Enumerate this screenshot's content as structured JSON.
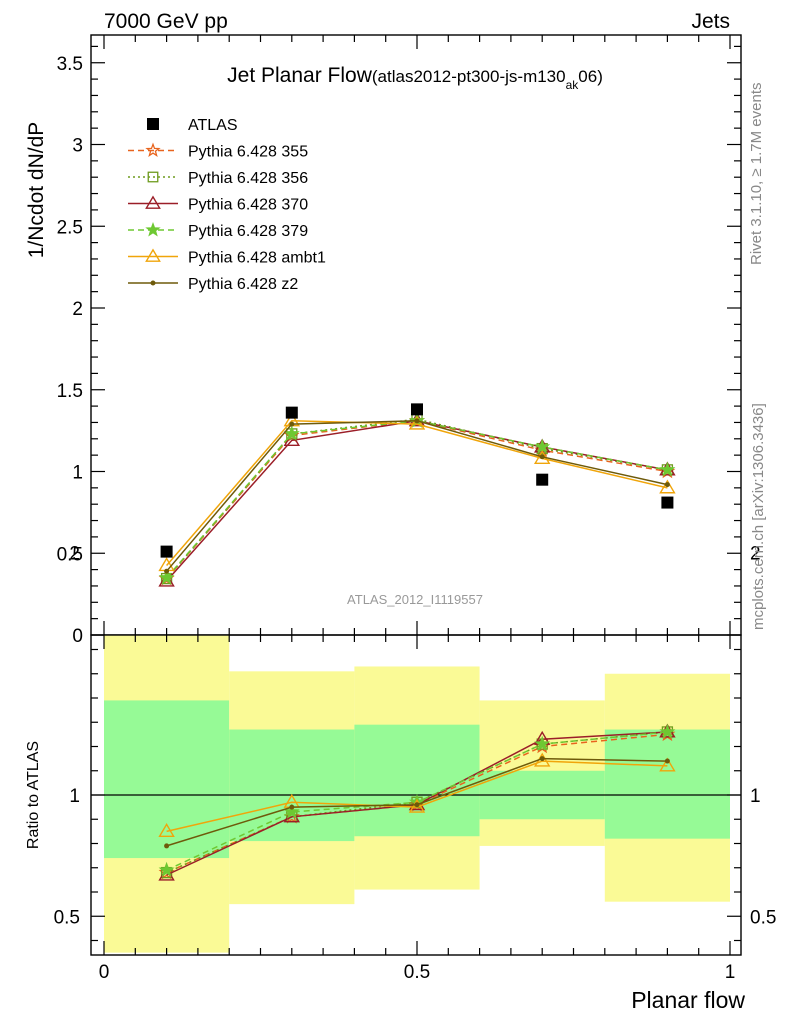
{
  "header": {
    "left": "7000 GeV pp",
    "right": "Jets"
  },
  "side_labels": {
    "rivet": "Rivet 3.1.10, ≥ 1.7M events",
    "mcplots": "mcplots.cern.ch [arXiv:1306.3436]"
  },
  "watermark": "ATLAS_2012_I1119557",
  "colors": {
    "atlas": "#000000",
    "p355": "#e8641e",
    "p356": "#6e9b1e",
    "p370": "#9b1e28",
    "p379": "#6ec832",
    "ambt1": "#f0a50a",
    "z2": "#6e5a0a",
    "band_inner": "#96fa96",
    "band_outer": "#fafa96"
  },
  "chart_data": [
    {
      "type": "line",
      "title": "Jet Planar Flow",
      "title_sub_pre": "(atlas2012-pt300-js-m130",
      "title_sub_script": "ak",
      "title_sub_post": "06)",
      "ylabel": "1/Ncdot dN/dP",
      "xlim": [
        0,
        1
      ],
      "ylim": [
        0,
        3.7
      ],
      "yticks": [
        "0",
        "0.5",
        "1",
        "1.5",
        "2",
        "2.5",
        "3",
        "3.5"
      ],
      "legend_position": "top-left",
      "x": [
        0.1,
        0.3,
        0.5,
        0.7,
        0.9
      ],
      "series": [
        {
          "name": "ATLAS",
          "values": [
            0.51,
            1.36,
            1.38,
            0.95,
            0.81
          ]
        },
        {
          "name": "Pythia 6.428 355",
          "values": [
            0.345,
            1.22,
            1.31,
            1.13,
            1.0
          ]
        },
        {
          "name": "Pythia 6.428 356",
          "values": [
            0.345,
            1.23,
            1.32,
            1.14,
            1.01
          ]
        },
        {
          "name": "Pythia 6.428 370",
          "values": [
            0.33,
            1.19,
            1.31,
            1.15,
            1.01
          ]
        },
        {
          "name": "Pythia 6.428 379",
          "values": [
            0.35,
            1.23,
            1.31,
            1.15,
            1.01
          ]
        },
        {
          "name": "Pythia 6.428 ambt1",
          "values": [
            0.425,
            1.31,
            1.29,
            1.08,
            0.9
          ]
        },
        {
          "name": "Pythia 6.428 z2",
          "values": [
            0.39,
            1.29,
            1.31,
            1.09,
            0.92
          ]
        }
      ]
    },
    {
      "type": "line",
      "xlabel": "Planar flow",
      "ylabel": "Ratio to ATLAS",
      "xlim": [
        0,
        1
      ],
      "ylim": [
        0.35,
        2.25
      ],
      "xticks": [
        "0",
        "0.5",
        "1"
      ],
      "yticks": [
        "0.5",
        "1",
        "2"
      ],
      "reference_line": 1,
      "bands": [
        {
          "x": [
            0.0,
            0.2
          ],
          "inner": [
            0.74,
            1.39
          ],
          "outer": [
            0.35,
            1.69
          ]
        },
        {
          "x": [
            0.2,
            0.4
          ],
          "inner": [
            0.81,
            1.27
          ],
          "outer": [
            0.55,
            1.51
          ]
        },
        {
          "x": [
            0.4,
            0.6
          ],
          "inner": [
            0.83,
            1.29
          ],
          "outer": [
            0.61,
            1.53
          ]
        },
        {
          "x": [
            0.6,
            0.8
          ],
          "inner": [
            0.9,
            1.1
          ],
          "outer": [
            0.79,
            1.39
          ]
        },
        {
          "x": [
            0.8,
            1.0
          ],
          "inner": [
            0.82,
            1.27
          ],
          "outer": [
            0.56,
            1.5
          ]
        }
      ],
      "x": [
        0.1,
        0.3,
        0.5,
        0.7,
        0.9
      ],
      "series": [
        {
          "name": "Pythia 6.428 355",
          "values": [
            0.68,
            0.91,
            0.96,
            1.2,
            1.25
          ]
        },
        {
          "name": "Pythia 6.428 356",
          "values": [
            0.68,
            0.91,
            0.97,
            1.21,
            1.26
          ]
        },
        {
          "name": "Pythia 6.428 370",
          "values": [
            0.67,
            0.91,
            0.96,
            1.23,
            1.26
          ]
        },
        {
          "name": "Pythia 6.428 379",
          "values": [
            0.69,
            0.93,
            0.97,
            1.21,
            1.26
          ]
        },
        {
          "name": "Pythia 6.428 ambt1",
          "values": [
            0.85,
            0.97,
            0.95,
            1.14,
            1.12
          ]
        },
        {
          "name": "Pythia 6.428 z2",
          "values": [
            0.79,
            0.95,
            0.96,
            1.15,
            1.14
          ]
        }
      ]
    }
  ]
}
